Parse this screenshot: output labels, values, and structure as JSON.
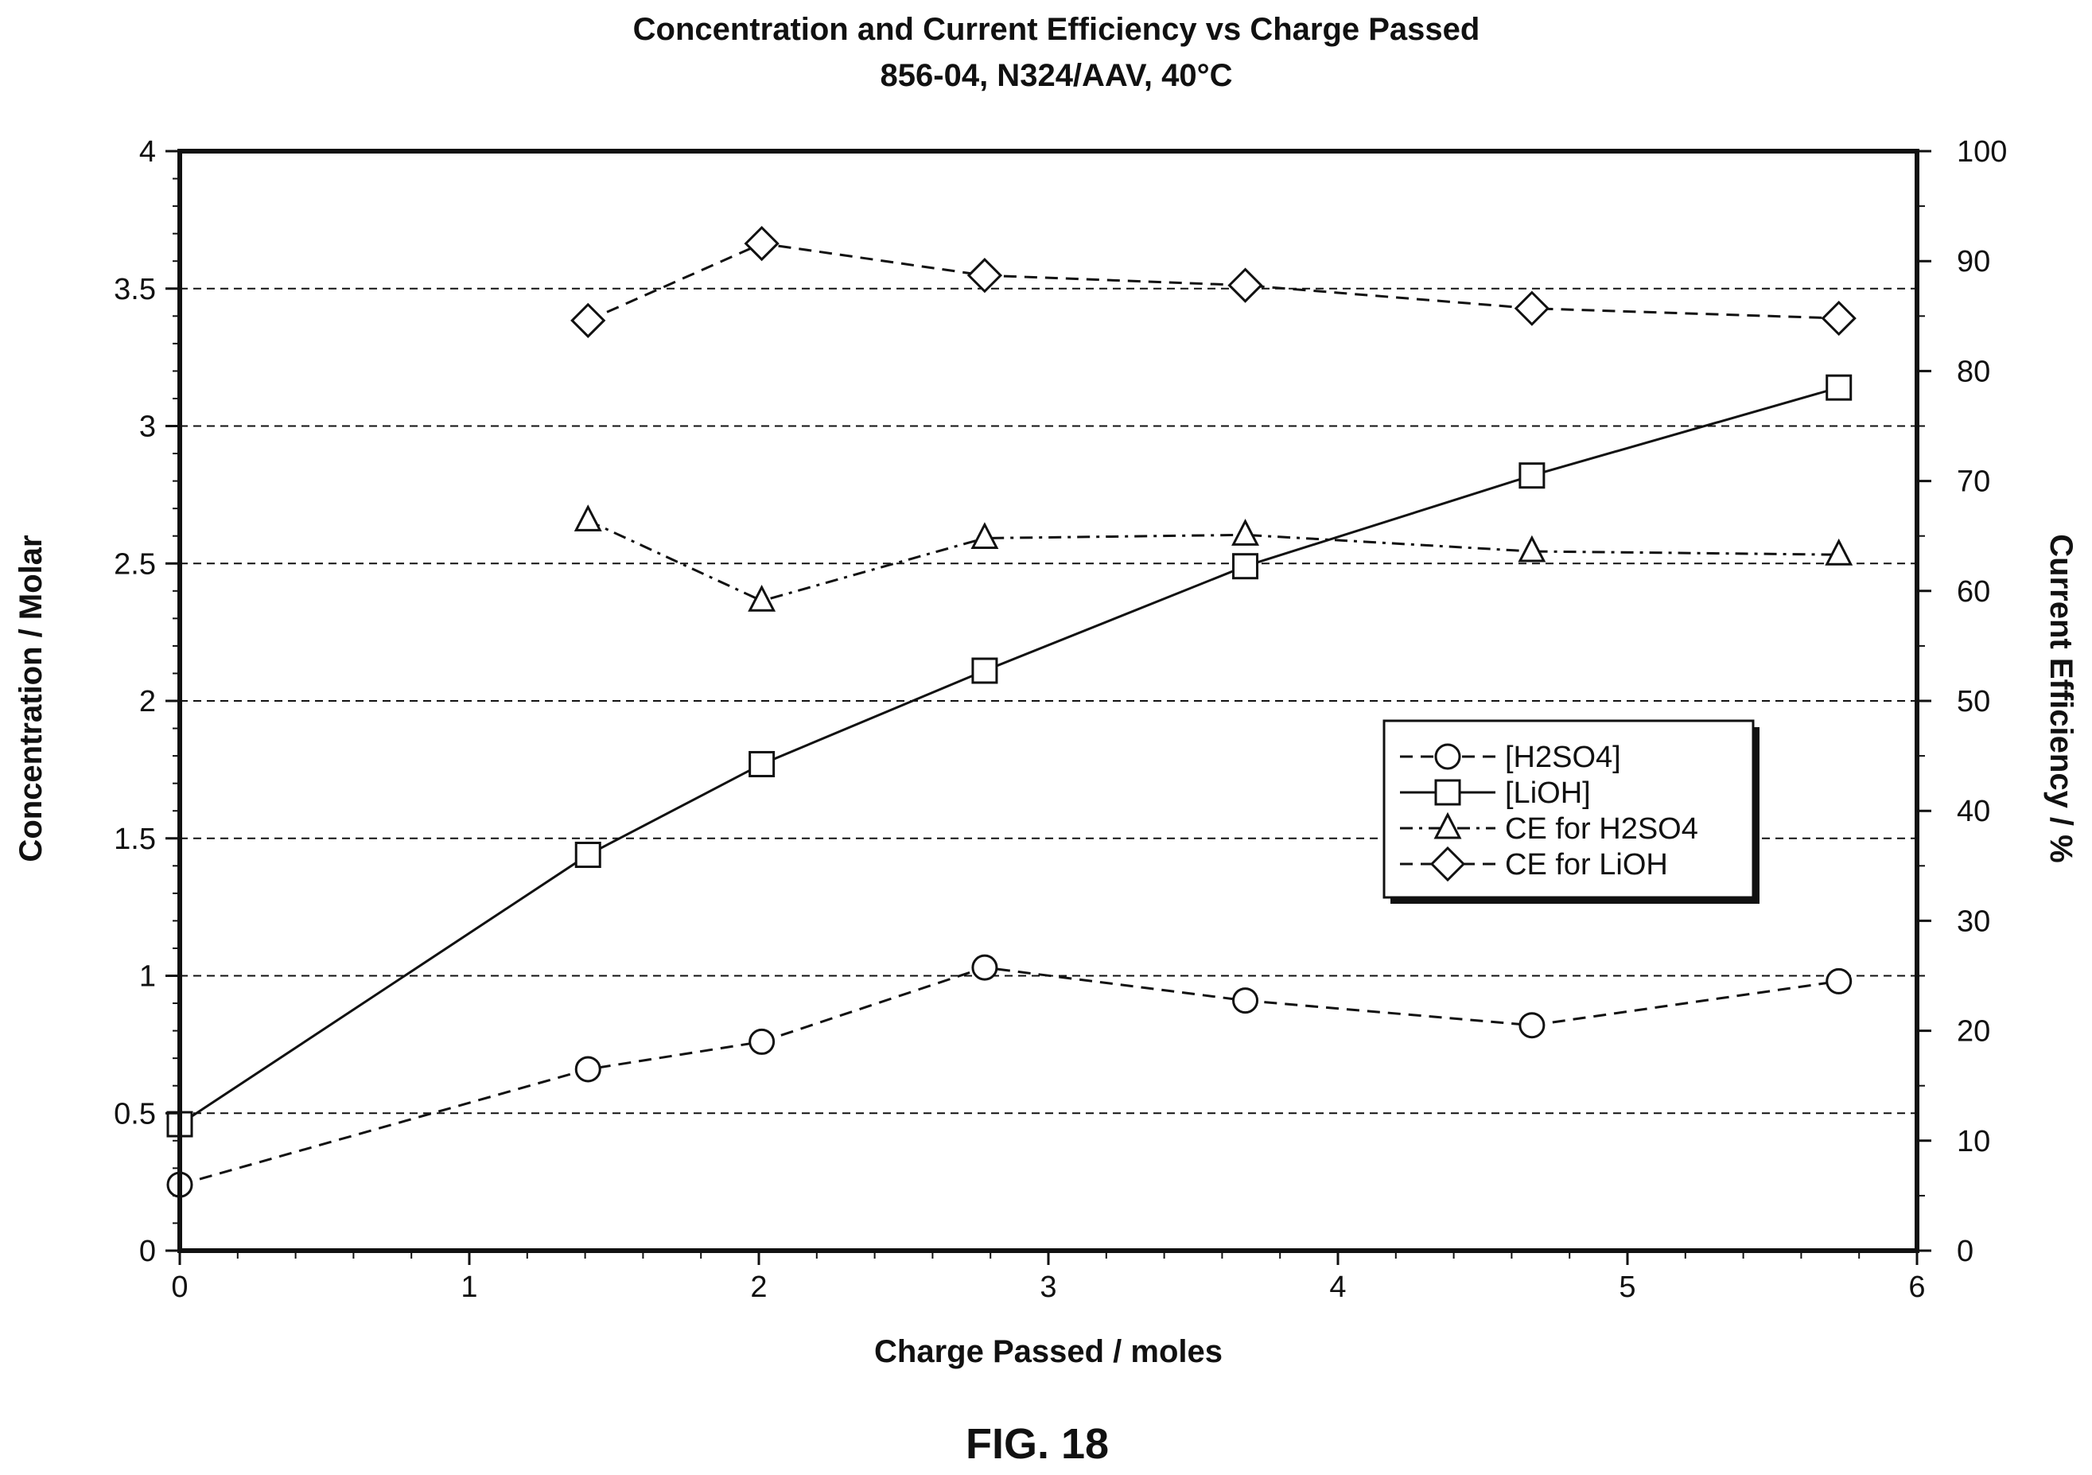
{
  "chart_data": {
    "type": "line",
    "title": "Concentration and Current Efficiency vs Charge Passed",
    "subtitle": "856-04, N324/AAV, 40°C",
    "xlabel": "Charge Passed / moles",
    "ylabel": "Concentration / Molar",
    "y2label": "Current Efficiency / %",
    "xlim": [
      0,
      6
    ],
    "ylim": [
      0,
      4
    ],
    "y2lim": [
      0,
      100
    ],
    "xticks": [
      "0",
      "1",
      "2",
      "3",
      "4",
      "5",
      "6"
    ],
    "yticks": [
      "0",
      "0.5",
      "1",
      "1.5",
      "2",
      "2.5",
      "3",
      "3.5",
      "4"
    ],
    "y2ticks": [
      "0",
      "10",
      "20",
      "30",
      "40",
      "50",
      "60",
      "70",
      "80",
      "90",
      "100"
    ],
    "grid": "horizontal dashed at left-axis major ticks",
    "legend_position": "center-right",
    "series": [
      {
        "name": "[H2SO4]",
        "axis": "left",
        "marker": "circle",
        "line": "dashed",
        "x": [
          0,
          1.41,
          2.01,
          2.78,
          3.68,
          4.67,
          5.73
        ],
        "y": [
          0.24,
          0.66,
          0.76,
          1.03,
          0.91,
          0.82,
          0.98
        ]
      },
      {
        "name": "[LiOH]",
        "axis": "left",
        "marker": "square",
        "line": "solid",
        "x": [
          0,
          1.41,
          2.01,
          2.78,
          3.68,
          4.67,
          5.73
        ],
        "y": [
          0.46,
          1.44,
          1.77,
          2.11,
          2.49,
          2.82,
          3.14
        ]
      },
      {
        "name": "CE for H2SO4",
        "axis": "right",
        "marker": "triangle",
        "line": "dashdot",
        "x": [
          1.41,
          2.01,
          2.78,
          3.68,
          4.67,
          5.73
        ],
        "y": [
          66.4,
          59.1,
          64.8,
          65.1,
          63.6,
          63.3
        ]
      },
      {
        "name": "CE for LiOH",
        "axis": "right",
        "marker": "diamond",
        "line": "dashed",
        "x": [
          1.41,
          2.01,
          2.78,
          3.68,
          4.67,
          5.73
        ],
        "y": [
          84.6,
          91.6,
          88.7,
          87.8,
          85.7,
          84.8
        ]
      }
    ]
  },
  "figure_label": "FIG. 18",
  "colors": {
    "ink": "#111111",
    "background": "#ffffff"
  }
}
